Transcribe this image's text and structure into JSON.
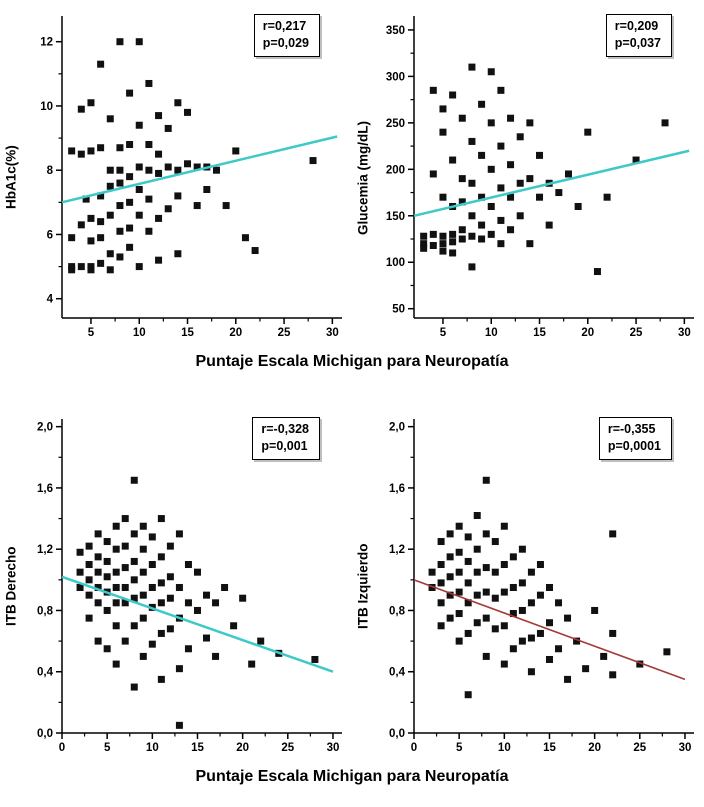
{
  "page": {
    "background": "#ffffff"
  },
  "shared": {
    "x_axis_title_top": "Puntaje  Escala Michigan para Neuropatía",
    "x_axis_title_bottom": "Puntaje  Escala Michigan para Neuropatía"
  },
  "chart_data": [
    {
      "type": "scatter",
      "name": "hba1c-vs-michigan",
      "ylabel": "HbA1c(%)",
      "xlabel": "Puntaje  Escala Michigan para Neuropatía",
      "annotations": [
        "r=0,217",
        "p=0,029"
      ],
      "legend_position": "none",
      "grid": false,
      "marker": "square",
      "marker_color": "#111111",
      "xlim": [
        2,
        31
      ],
      "ylim": [
        3.4,
        12.8
      ],
      "xticks": [
        5,
        10,
        15,
        20,
        25,
        30
      ],
      "xtick_labels": [
        "5",
        "10",
        "15",
        "20",
        "25",
        "30"
      ],
      "yticks": [
        4,
        6,
        8,
        10,
        12
      ],
      "ytick_labels": [
        "4",
        "6",
        "8",
        "10",
        "12"
      ],
      "trend": {
        "x": [
          2,
          30.5
        ],
        "y": [
          7.0,
          9.05
        ],
        "color": "#3ec9c9",
        "width": 2.5
      },
      "points": [
        [
          3,
          5.9
        ],
        [
          3,
          5.0
        ],
        [
          3,
          4.9
        ],
        [
          3,
          8.6
        ],
        [
          4,
          9.9
        ],
        [
          4,
          8.5
        ],
        [
          4,
          6.3
        ],
        [
          4,
          5.0
        ],
        [
          4.5,
          7.1
        ],
        [
          5,
          10.1
        ],
        [
          5,
          8.6
        ],
        [
          5,
          6.5
        ],
        [
          5,
          5.8
        ],
        [
          5,
          5.0
        ],
        [
          5,
          4.9
        ],
        [
          6,
          11.3
        ],
        [
          6,
          8.7
        ],
        [
          6,
          7.2
        ],
        [
          6,
          6.4
        ],
        [
          6,
          5.9
        ],
        [
          6,
          5.1
        ],
        [
          7,
          9.6
        ],
        [
          7,
          8.0
        ],
        [
          7,
          7.5
        ],
        [
          7,
          6.6
        ],
        [
          7,
          5.4
        ],
        [
          7,
          4.9
        ],
        [
          8,
          12.0
        ],
        [
          8,
          8.7
        ],
        [
          8,
          8.0
        ],
        [
          8,
          7.6
        ],
        [
          8,
          6.9
        ],
        [
          8,
          6.1
        ],
        [
          8,
          5.3
        ],
        [
          9,
          10.4
        ],
        [
          9,
          8.8
        ],
        [
          9,
          7.8
        ],
        [
          9,
          7.0
        ],
        [
          9,
          6.2
        ],
        [
          9,
          5.6
        ],
        [
          10,
          12.0
        ],
        [
          10,
          9.4
        ],
        [
          10,
          8.1
        ],
        [
          10,
          7.4
        ],
        [
          10,
          6.6
        ],
        [
          10,
          5.0
        ],
        [
          11,
          10.7
        ],
        [
          11,
          8.8
        ],
        [
          11,
          8.0
        ],
        [
          11,
          7.1
        ],
        [
          11,
          6.1
        ],
        [
          12,
          9.7
        ],
        [
          12,
          8.5
        ],
        [
          12,
          7.9
        ],
        [
          12,
          6.5
        ],
        [
          12,
          5.2
        ],
        [
          13,
          9.3
        ],
        [
          13,
          8.1
        ],
        [
          13,
          6.8
        ],
        [
          14,
          10.1
        ],
        [
          14,
          8.0
        ],
        [
          14,
          7.2
        ],
        [
          14,
          5.4
        ],
        [
          15,
          9.8
        ],
        [
          15,
          8.2
        ],
        [
          16,
          8.1
        ],
        [
          16,
          6.9
        ],
        [
          17,
          8.1
        ],
        [
          17,
          7.4
        ],
        [
          18,
          8.0
        ],
        [
          19,
          6.9
        ],
        [
          20,
          8.6
        ],
        [
          21,
          5.9
        ],
        [
          22,
          5.5
        ],
        [
          28,
          8.3
        ]
      ]
    },
    {
      "type": "scatter",
      "name": "glucemia-vs-michigan",
      "ylabel": "Glucemia (mg/dL)",
      "xlabel": "Puntaje  Escala Michigan para Neuropatía",
      "annotations": [
        "r=0,209",
        "p=0,037"
      ],
      "legend_position": "none",
      "grid": false,
      "marker": "square",
      "marker_color": "#111111",
      "xlim": [
        2,
        31
      ],
      "ylim": [
        40,
        365
      ],
      "xticks": [
        5,
        10,
        15,
        20,
        25,
        30
      ],
      "xtick_labels": [
        "5",
        "10",
        "15",
        "20",
        "25",
        "30"
      ],
      "yticks": [
        50,
        100,
        150,
        200,
        250,
        300,
        350
      ],
      "ytick_labels": [
        "50",
        "100",
        "150",
        "200",
        "250",
        "300",
        "350"
      ],
      "trend": {
        "x": [
          2,
          30.5
        ],
        "y": [
          150,
          220
        ],
        "color": "#3ec9c9",
        "width": 2.5
      },
      "points": [
        [
          3,
          128
        ],
        [
          3,
          120
        ],
        [
          3,
          115
        ],
        [
          4,
          285
        ],
        [
          4,
          195
        ],
        [
          4,
          130
        ],
        [
          4,
          118
        ],
        [
          5,
          265
        ],
        [
          5,
          240
        ],
        [
          5,
          170
        ],
        [
          5,
          128
        ],
        [
          5,
          120
        ],
        [
          5,
          112
        ],
        [
          6,
          280
        ],
        [
          6,
          210
        ],
        [
          6,
          160
        ],
        [
          6,
          130
        ],
        [
          6,
          122
        ],
        [
          6,
          110
        ],
        [
          7,
          255
        ],
        [
          7,
          190
        ],
        [
          7,
          165
        ],
        [
          7,
          135
        ],
        [
          7,
          125
        ],
        [
          8,
          310
        ],
        [
          8,
          230
        ],
        [
          8,
          185
        ],
        [
          8,
          150
        ],
        [
          8,
          128
        ],
        [
          8,
          95
        ],
        [
          9,
          270
        ],
        [
          9,
          215
        ],
        [
          9,
          170
        ],
        [
          9,
          140
        ],
        [
          9,
          125
        ],
        [
          10,
          305
        ],
        [
          10,
          250
        ],
        [
          10,
          200
        ],
        [
          10,
          160
        ],
        [
          10,
          130
        ],
        [
          11,
          285
        ],
        [
          11,
          225
        ],
        [
          11,
          180
        ],
        [
          11,
          145
        ],
        [
          11,
          120
        ],
        [
          12,
          255
        ],
        [
          12,
          205
        ],
        [
          12,
          170
        ],
        [
          12,
          135
        ],
        [
          13,
          235
        ],
        [
          13,
          185
        ],
        [
          13,
          150
        ],
        [
          14,
          250
        ],
        [
          14,
          190
        ],
        [
          14,
          120
        ],
        [
          15,
          215
        ],
        [
          15,
          170
        ],
        [
          16,
          185
        ],
        [
          16,
          140
        ],
        [
          17,
          175
        ],
        [
          18,
          195
        ],
        [
          19,
          160
        ],
        [
          20,
          240
        ],
        [
          21,
          90
        ],
        [
          22,
          170
        ],
        [
          25,
          210
        ],
        [
          28,
          250
        ]
      ]
    },
    {
      "type": "scatter",
      "name": "itb-derecho-vs-michigan",
      "ylabel": "ITB Derecho",
      "xlabel": "Puntaje  Escala Michigan para Neuropatía",
      "annotations": [
        "r=-0,328",
        "p=0,001"
      ],
      "legend_position": "none",
      "grid": false,
      "marker": "square",
      "marker_color": "#111111",
      "xlim": [
        0,
        31
      ],
      "ylim": [
        0,
        2.05
      ],
      "xticks": [
        0,
        5,
        10,
        15,
        20,
        25,
        30
      ],
      "xtick_labels": [
        "0",
        "5",
        "10",
        "15",
        "20",
        "25",
        "30"
      ],
      "yticks": [
        0,
        0.4,
        0.8,
        1.2,
        1.6,
        2.0
      ],
      "ytick_labels": [
        "0,0",
        "0,4",
        "0,8",
        "1,2",
        "1,6",
        "2,0"
      ],
      "trend": {
        "x": [
          0,
          30
        ],
        "y": [
          1.02,
          0.4
        ],
        "color": "#3ec9c9",
        "width": 2.5
      },
      "points": [
        [
          2,
          1.18
        ],
        [
          2,
          1.05
        ],
        [
          2,
          0.95
        ],
        [
          3,
          1.22
        ],
        [
          3,
          1.1
        ],
        [
          3,
          1.0
        ],
        [
          3,
          0.9
        ],
        [
          3,
          0.75
        ],
        [
          4,
          1.3
        ],
        [
          4,
          1.15
        ],
        [
          4,
          1.05
        ],
        [
          4,
          0.95
        ],
        [
          4,
          0.85
        ],
        [
          4,
          0.6
        ],
        [
          5,
          1.25
        ],
        [
          5,
          1.12
        ],
        [
          5,
          1.02
        ],
        [
          5,
          0.92
        ],
        [
          5,
          0.8
        ],
        [
          5,
          0.55
        ],
        [
          6,
          1.35
        ],
        [
          6,
          1.2
        ],
        [
          6,
          1.05
        ],
        [
          6,
          0.95
        ],
        [
          6,
          0.85
        ],
        [
          6,
          0.7
        ],
        [
          6,
          0.45
        ],
        [
          7,
          1.4
        ],
        [
          7,
          1.22
        ],
        [
          7,
          1.08
        ],
        [
          7,
          0.95
        ],
        [
          7,
          0.85
        ],
        [
          7,
          0.6
        ],
        [
          8,
          1.65
        ],
        [
          8,
          1.3
        ],
        [
          8,
          1.12
        ],
        [
          8,
          1.0
        ],
        [
          8,
          0.88
        ],
        [
          8,
          0.7
        ],
        [
          8,
          0.3
        ],
        [
          9,
          1.35
        ],
        [
          9,
          1.2
        ],
        [
          9,
          1.05
        ],
        [
          9,
          0.9
        ],
        [
          9,
          0.75
        ],
        [
          9,
          0.5
        ],
        [
          10,
          1.28
        ],
        [
          10,
          1.1
        ],
        [
          10,
          0.95
        ],
        [
          10,
          0.82
        ],
        [
          10,
          0.58
        ],
        [
          11,
          1.4
        ],
        [
          11,
          1.15
        ],
        [
          11,
          0.98
        ],
        [
          11,
          0.85
        ],
        [
          11,
          0.65
        ],
        [
          11,
          0.35
        ],
        [
          12,
          1.22
        ],
        [
          12,
          1.02
        ],
        [
          12,
          0.88
        ],
        [
          12,
          0.68
        ],
        [
          13,
          1.3
        ],
        [
          13,
          0.95
        ],
        [
          13,
          0.75
        ],
        [
          13,
          0.42
        ],
        [
          13,
          0.05
        ],
        [
          14,
          1.1
        ],
        [
          14,
          0.85
        ],
        [
          14,
          0.55
        ],
        [
          15,
          1.05
        ],
        [
          15,
          0.8
        ],
        [
          16,
          0.9
        ],
        [
          16,
          0.62
        ],
        [
          17,
          0.85
        ],
        [
          17,
          0.5
        ],
        [
          18,
          0.95
        ],
        [
          19,
          0.7
        ],
        [
          20,
          0.88
        ],
        [
          21,
          0.45
        ],
        [
          22,
          0.6
        ],
        [
          24,
          0.52
        ],
        [
          28,
          0.48
        ]
      ]
    },
    {
      "type": "scatter",
      "name": "itb-izquierdo-vs-michigan",
      "ylabel": "ITB Izquierdo",
      "xlabel": "Puntaje  Escala Michigan para Neuropatía",
      "annotations": [
        "r=-0,355",
        "p=0,0001"
      ],
      "legend_position": "none",
      "grid": false,
      "marker": "square",
      "marker_color": "#111111",
      "xlim": [
        0,
        31
      ],
      "ylim": [
        0,
        2.05
      ],
      "xticks": [
        0,
        5,
        10,
        15,
        20,
        25,
        30
      ],
      "xtick_labels": [
        "0",
        "5",
        "10",
        "15",
        "20",
        "25",
        "30"
      ],
      "yticks": [
        0,
        0.4,
        0.8,
        1.2,
        1.6,
        2.0
      ],
      "ytick_labels": [
        "0,0",
        "0,4",
        "0,8",
        "1,2",
        "1,6",
        "2,0"
      ],
      "trend": {
        "x": [
          0,
          30
        ],
        "y": [
          1.0,
          0.35
        ],
        "color": "#a33a3a",
        "width": 1.6
      },
      "points": [
        [
          2,
          1.05
        ],
        [
          2,
          0.95
        ],
        [
          3,
          1.25
        ],
        [
          3,
          1.1
        ],
        [
          3,
          0.98
        ],
        [
          3,
          0.85
        ],
        [
          3,
          0.7
        ],
        [
          4,
          1.3
        ],
        [
          4,
          1.15
        ],
        [
          4,
          1.02
        ],
        [
          4,
          0.9
        ],
        [
          4,
          0.75
        ],
        [
          5,
          1.35
        ],
        [
          5,
          1.18
        ],
        [
          5,
          1.05
        ],
        [
          5,
          0.92
        ],
        [
          5,
          0.78
        ],
        [
          5,
          0.6
        ],
        [
          6,
          1.28
        ],
        [
          6,
          1.12
        ],
        [
          6,
          0.98
        ],
        [
          6,
          0.85
        ],
        [
          6,
          0.65
        ],
        [
          6,
          0.25
        ],
        [
          7,
          1.42
        ],
        [
          7,
          1.2
        ],
        [
          7,
          1.05
        ],
        [
          7,
          0.9
        ],
        [
          7,
          0.72
        ],
        [
          8,
          1.65
        ],
        [
          8,
          1.3
        ],
        [
          8,
          1.08
        ],
        [
          8,
          0.92
        ],
        [
          8,
          0.75
        ],
        [
          8,
          0.5
        ],
        [
          9,
          1.25
        ],
        [
          9,
          1.05
        ],
        [
          9,
          0.88
        ],
        [
          9,
          0.68
        ],
        [
          10,
          1.35
        ],
        [
          10,
          1.1
        ],
        [
          10,
          0.92
        ],
        [
          10,
          0.7
        ],
        [
          10,
          0.45
        ],
        [
          11,
          1.15
        ],
        [
          11,
          0.95
        ],
        [
          11,
          0.78
        ],
        [
          11,
          0.55
        ],
        [
          12,
          1.2
        ],
        [
          12,
          0.98
        ],
        [
          12,
          0.8
        ],
        [
          12,
          0.6
        ],
        [
          13,
          1.05
        ],
        [
          13,
          0.85
        ],
        [
          13,
          0.62
        ],
        [
          13,
          0.4
        ],
        [
          14,
          1.1
        ],
        [
          14,
          0.9
        ],
        [
          14,
          0.65
        ],
        [
          15,
          0.95
        ],
        [
          15,
          0.72
        ],
        [
          15,
          0.48
        ],
        [
          16,
          0.85
        ],
        [
          16,
          0.55
        ],
        [
          17,
          0.75
        ],
        [
          17,
          0.35
        ],
        [
          18,
          0.6
        ],
        [
          19,
          0.42
        ],
        [
          20,
          0.8
        ],
        [
          21,
          0.5
        ],
        [
          22,
          0.65
        ],
        [
          22,
          0.38
        ],
        [
          22,
          1.3
        ],
        [
          25,
          0.45
        ],
        [
          28,
          0.53
        ]
      ]
    }
  ]
}
